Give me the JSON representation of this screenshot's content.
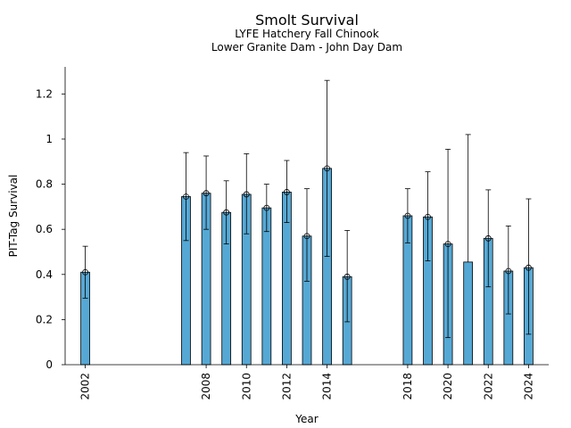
{
  "chart_data": {
    "type": "bar",
    "title": "Smolt Survival",
    "subtitle_lines": [
      "LYFE Hatchery Fall Chinook",
      "Lower Granite Dam - John Day Dam"
    ],
    "xlabel": "Year",
    "ylabel": "PIT-Tag Survival",
    "ylim": [
      0,
      1.32
    ],
    "xlim": [
      2001.0,
      2025.0
    ],
    "yticks": [
      0,
      0.2,
      0.4,
      0.6,
      0.8,
      1.0,
      1.2
    ],
    "ytick_labels": [
      "0",
      "0.2",
      "0.4",
      "0.6",
      "0.8",
      "1",
      "1.2"
    ],
    "xticks": [
      2002,
      2008,
      2010,
      2012,
      2014,
      2018,
      2020,
      2022,
      2024
    ],
    "xtick_labels": [
      "2002",
      "2008",
      "2010",
      "2012",
      "2014",
      "2018",
      "2020",
      "2022",
      "2024"
    ],
    "bar_color": "#56a8d4",
    "grid": false,
    "points": [
      {
        "year": 2002,
        "value": 0.41,
        "lower": 0.295,
        "upper": 0.525,
        "marker": true
      },
      {
        "year": 2007,
        "value": 0.745,
        "lower": 0.55,
        "upper": 0.94,
        "marker": true
      },
      {
        "year": 2008,
        "value": 0.76,
        "lower": 0.6,
        "upper": 0.925,
        "marker": true
      },
      {
        "year": 2009,
        "value": 0.675,
        "lower": 0.535,
        "upper": 0.815,
        "marker": true
      },
      {
        "year": 2010,
        "value": 0.755,
        "lower": 0.58,
        "upper": 0.935,
        "marker": true
      },
      {
        "year": 2011,
        "value": 0.695,
        "lower": 0.59,
        "upper": 0.8,
        "marker": true
      },
      {
        "year": 2012,
        "value": 0.765,
        "lower": 0.63,
        "upper": 0.905,
        "marker": true
      },
      {
        "year": 2013,
        "value": 0.57,
        "lower": 0.37,
        "upper": 0.78,
        "marker": true
      },
      {
        "year": 2014,
        "value": 0.87,
        "lower": 0.48,
        "upper": 1.26,
        "marker": true
      },
      {
        "year": 2015,
        "value": 0.39,
        "lower": 0.19,
        "upper": 0.595,
        "marker": true
      },
      {
        "year": 2018,
        "value": 0.66,
        "lower": 0.54,
        "upper": 0.78,
        "marker": true
      },
      {
        "year": 2019,
        "value": 0.655,
        "lower": 0.46,
        "upper": 0.855,
        "marker": true
      },
      {
        "year": 2020,
        "value": 0.535,
        "lower": 0.12,
        "upper": 0.955,
        "marker": true
      },
      {
        "year": 2021,
        "value": 0.455,
        "lower": null,
        "upper": 1.02,
        "marker": false
      },
      {
        "year": 2022,
        "value": 0.56,
        "lower": 0.345,
        "upper": 0.775,
        "marker": true
      },
      {
        "year": 2023,
        "value": 0.415,
        "lower": 0.225,
        "upper": 0.615,
        "marker": true
      },
      {
        "year": 2024,
        "value": 0.43,
        "lower": 0.135,
        "upper": 0.735,
        "marker": true
      }
    ]
  }
}
